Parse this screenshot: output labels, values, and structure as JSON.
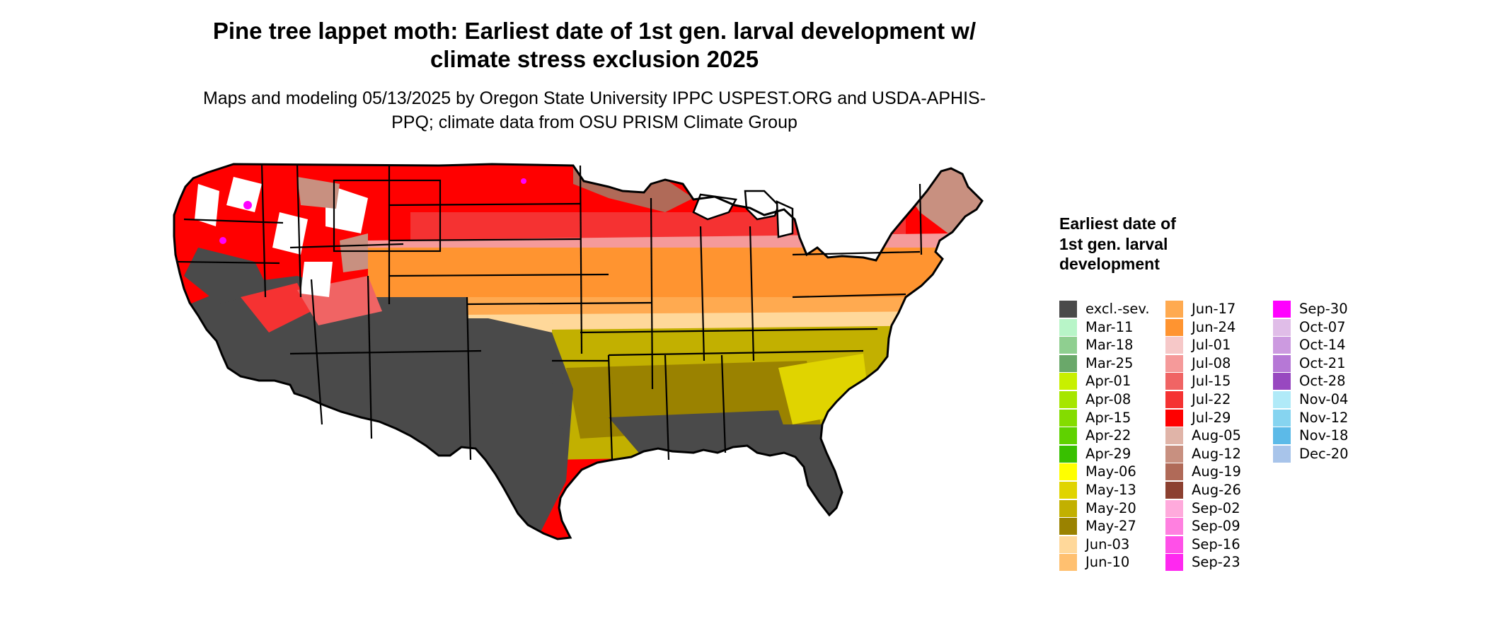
{
  "title": "Pine tree lappet moth: Earliest date of 1st gen. larval development w/ climate stress exclusion 2025",
  "subtitle": "Maps and modeling 05/13/2025 by Oregon State University IPPC USPEST.ORG and USDA-APHIS-PPQ; climate data from OSU PRISM Climate Group",
  "legend": {
    "title": "Earliest date of 1st gen. larval development",
    "columns": [
      [
        {
          "label": "excl.-sev.",
          "color": "#4a4a4a"
        },
        {
          "label": "Mar-11",
          "color": "#b8f5c8"
        },
        {
          "label": "Mar-18",
          "color": "#8fcf90"
        },
        {
          "label": "Mar-25",
          "color": "#6aa86a"
        },
        {
          "label": "Apr-01",
          "color": "#c8f000"
        },
        {
          "label": "Apr-08",
          "color": "#a6e600"
        },
        {
          "label": "Apr-15",
          "color": "#84dc00"
        },
        {
          "label": "Apr-22",
          "color": "#5fd200"
        },
        {
          "label": "Apr-29",
          "color": "#38c000"
        },
        {
          "label": "May-06",
          "color": "#ffff00"
        },
        {
          "label": "May-13",
          "color": "#e0d400"
        },
        {
          "label": "May-20",
          "color": "#c2b000"
        },
        {
          "label": "May-27",
          "color": "#9a8200"
        },
        {
          "label": "Jun-03",
          "color": "#ffd89a"
        },
        {
          "label": "Jun-10",
          "color": "#ffc070"
        }
      ],
      [
        {
          "label": "Jun-17",
          "color": "#ffaa50"
        },
        {
          "label": "Jun-24",
          "color": "#ff9430"
        },
        {
          "label": "Jul-01",
          "color": "#f6c8c8"
        },
        {
          "label": "Jul-08",
          "color": "#f59a9a"
        },
        {
          "label": "Jul-15",
          "color": "#f06464"
        },
        {
          "label": "Jul-22",
          "color": "#f53232"
        },
        {
          "label": "Jul-29",
          "color": "#ff0000"
        },
        {
          "label": "Aug-05",
          "color": "#e0b4a8"
        },
        {
          "label": "Aug-12",
          "color": "#c89080"
        },
        {
          "label": "Aug-19",
          "color": "#b06a58"
        },
        {
          "label": "Aug-26",
          "color": "#8c4030"
        },
        {
          "label": "Sep-02",
          "color": "#ffaadc"
        },
        {
          "label": "Sep-09",
          "color": "#ff80e0"
        },
        {
          "label": "Sep-16",
          "color": "#ff50e8"
        },
        {
          "label": "Sep-23",
          "color": "#ff28f0"
        }
      ],
      [
        {
          "label": "Sep-30",
          "color": "#ff00ff"
        },
        {
          "label": "Oct-07",
          "color": "#e0bde8"
        },
        {
          "label": "Oct-14",
          "color": "#cc9ae0"
        },
        {
          "label": "Oct-21",
          "color": "#b678d6"
        },
        {
          "label": "Oct-28",
          "color": "#9848c0"
        },
        {
          "label": "Nov-04",
          "color": "#b0eaf8"
        },
        {
          "label": "Nov-12",
          "color": "#86d4f0"
        },
        {
          "label": "Nov-18",
          "color": "#5cbae8"
        },
        {
          "label": "Dec-20",
          "color": "#a8c4ea"
        }
      ]
    ]
  },
  "map_palette": {
    "outline": "#000000",
    "excluded": "#4a4a4a",
    "snow": "#ffffff",
    "red_north": "#ff0000",
    "red_mid": "#f53232",
    "pink_band": "#f6c8c8",
    "brown_ne": "#b06a58",
    "orange_band": "#ff9430",
    "light_orange_band": "#ffd89a",
    "olive_south": "#c2b000",
    "green_coast": "#38c000",
    "magenta_highlands": "#ff00ff"
  }
}
